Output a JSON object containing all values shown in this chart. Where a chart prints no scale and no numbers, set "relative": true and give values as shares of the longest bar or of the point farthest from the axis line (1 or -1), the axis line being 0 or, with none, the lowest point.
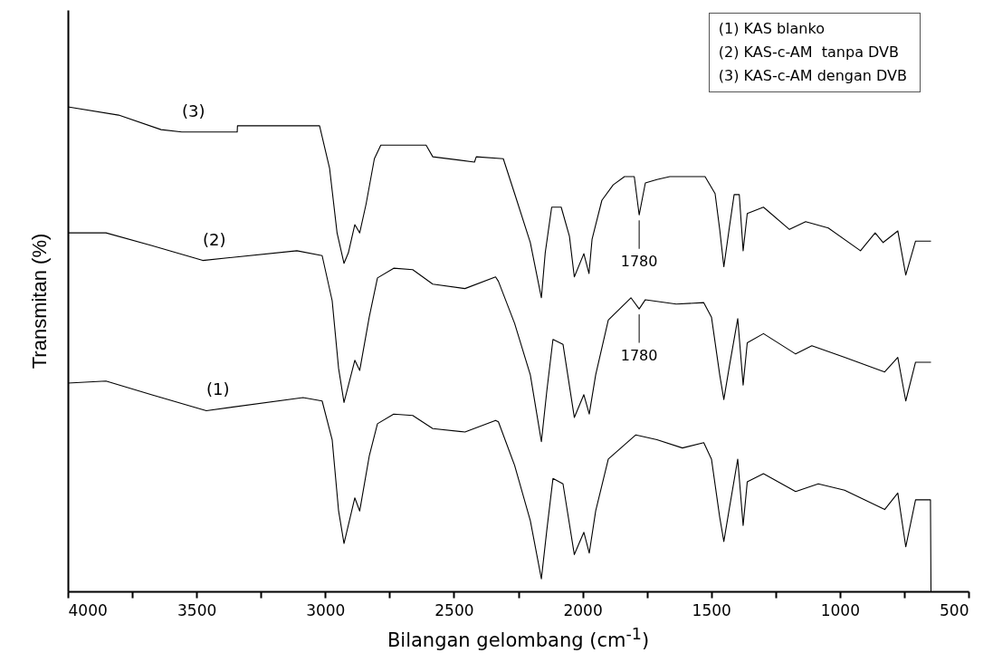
{
  "chart_data": {
    "type": "line",
    "relative": true,
    "xlabel": "Bilangan gelombang (cm$^{-1}$)",
    "ylabel": "Transmitan (%)",
    "xlim": [
      4000,
      500
    ],
    "xticks": [
      4000,
      {
        "value": 3750,
        "label": null
      },
      3500,
      {
        "value": 3250,
        "label": null
      },
      3000,
      {
        "value": 2750,
        "label": null
      },
      2500,
      {
        "value": 2250,
        "label": null
      },
      2000,
      {
        "value": 1750,
        "label": null
      },
      1500,
      {
        "value": 1250,
        "label": null
      },
      1000,
      {
        "value": 750,
        "label": null
      },
      500
    ],
    "grid": false,
    "annotations": [
      "(1) KAS blanko",
      "(2) KAS-c-AM  tanpa DVB",
      "(3) KAS-c-AM dengan DVB",
      {
        "text": "1780",
        "x": 1780,
        "y": 0.777
      },
      {
        "text": "1780",
        "x": 1780,
        "y": 0.583
      }
    ],
    "series": [
      {
        "name": "(1)",
        "color": "#000000",
        "x": [
          4000,
          3852,
          3676,
          3462,
          3086,
          3012,
          2973,
          2948,
          2927,
          2885,
          2866,
          2829,
          2797,
          2734,
          2660,
          2582,
          2457,
          2338,
          2327,
          2264,
          2203,
          2160,
          2139,
          2115,
          2076,
          2032,
          1995,
          1974,
          1949,
          1900,
          1793,
          1711,
          1612,
          1529,
          1499,
          1467,
          1451,
          1429,
          1397,
          1376,
          1360,
          1297,
          1172,
          1084,
          982,
          826,
          775,
          744,
          706,
          648,
          646
        ],
        "values": [
          0.43,
          0.434,
          0.406,
          0.373,
          0.4,
          0.393,
          0.313,
          0.166,
          0.099,
          0.193,
          0.166,
          0.279,
          0.346,
          0.366,
          0.363,
          0.336,
          0.329,
          0.353,
          0.35,
          0.26,
          0.146,
          0.026,
          0.126,
          0.233,
          0.222,
          0.076,
          0.122,
          0.079,
          0.166,
          0.273,
          0.323,
          0.313,
          0.296,
          0.307,
          0.273,
          0.153,
          0.103,
          0.173,
          0.273,
          0.136,
          0.226,
          0.243,
          0.206,
          0.222,
          0.209,
          0.169,
          0.203,
          0.092,
          0.189,
          0.189,
          0.0
        ]
      },
      {
        "name": "(2)",
        "color": "#000000",
        "x": [
          4000,
          3852,
          3676,
          3476,
          3110,
          3012,
          2973,
          2948,
          2927,
          2885,
          2866,
          2829,
          2797,
          2734,
          2660,
          2582,
          2457,
          2338,
          2327,
          2264,
          2203,
          2160,
          2139,
          2115,
          2076,
          2032,
          1995,
          1974,
          1949,
          1900,
          1812,
          1780,
          1756,
          1636,
          1529,
          1499,
          1467,
          1451,
          1429,
          1397,
          1376,
          1360,
          1297,
          1172,
          1109,
          982,
          826,
          775,
          744,
          706,
          646
        ],
        "values": [
          0.74,
          0.74,
          0.714,
          0.683,
          0.703,
          0.693,
          0.6,
          0.46,
          0.39,
          0.477,
          0.456,
          0.566,
          0.647,
          0.667,
          0.664,
          0.634,
          0.625,
          0.649,
          0.64,
          0.553,
          0.447,
          0.309,
          0.413,
          0.52,
          0.51,
          0.359,
          0.406,
          0.366,
          0.447,
          0.56,
          0.606,
          0.583,
          0.602,
          0.593,
          0.596,
          0.566,
          0.447,
          0.396,
          0.466,
          0.563,
          0.426,
          0.513,
          0.532,
          0.49,
          0.507,
          0.483,
          0.453,
          0.483,
          0.393,
          0.473,
          0.473
        ]
      },
      {
        "name": "(3)",
        "color": "#000000",
        "x": [
          4000,
          3803,
          3638,
          3557,
          3342,
          3341,
          3022,
          2983,
          2954,
          2927,
          2910,
          2885,
          2866,
          2841,
          2809,
          2784,
          2608,
          2582,
          2420,
          2413,
          2308,
          2264,
          2203,
          2160,
          2145,
          2120,
          2083,
          2051,
          2032,
          1995,
          1975,
          1963,
          1925,
          1881,
          1837,
          1799,
          1780,
          1756,
          1711,
          1661,
          1524,
          1485,
          1467,
          1451,
          1429,
          1411,
          1391,
          1376,
          1360,
          1297,
          1196,
          1133,
          1045,
          920,
          863,
          832,
          775,
          744,
          706,
          646
        ],
        "values": [
          1.0,
          0.983,
          0.953,
          0.948,
          0.948,
          0.961,
          0.961,
          0.873,
          0.74,
          0.677,
          0.699,
          0.757,
          0.74,
          0.8,
          0.893,
          0.921,
          0.921,
          0.897,
          0.886,
          0.897,
          0.893,
          0.821,
          0.72,
          0.606,
          0.699,
          0.793,
          0.793,
          0.733,
          0.649,
          0.697,
          0.656,
          0.727,
          0.807,
          0.839,
          0.856,
          0.856,
          0.777,
          0.843,
          0.85,
          0.856,
          0.856,
          0.821,
          0.747,
          0.67,
          0.753,
          0.819,
          0.819,
          0.703,
          0.78,
          0.793,
          0.747,
          0.763,
          0.75,
          0.703,
          0.74,
          0.72,
          0.744,
          0.653,
          0.723,
          0.723
        ]
      }
    ]
  }
}
